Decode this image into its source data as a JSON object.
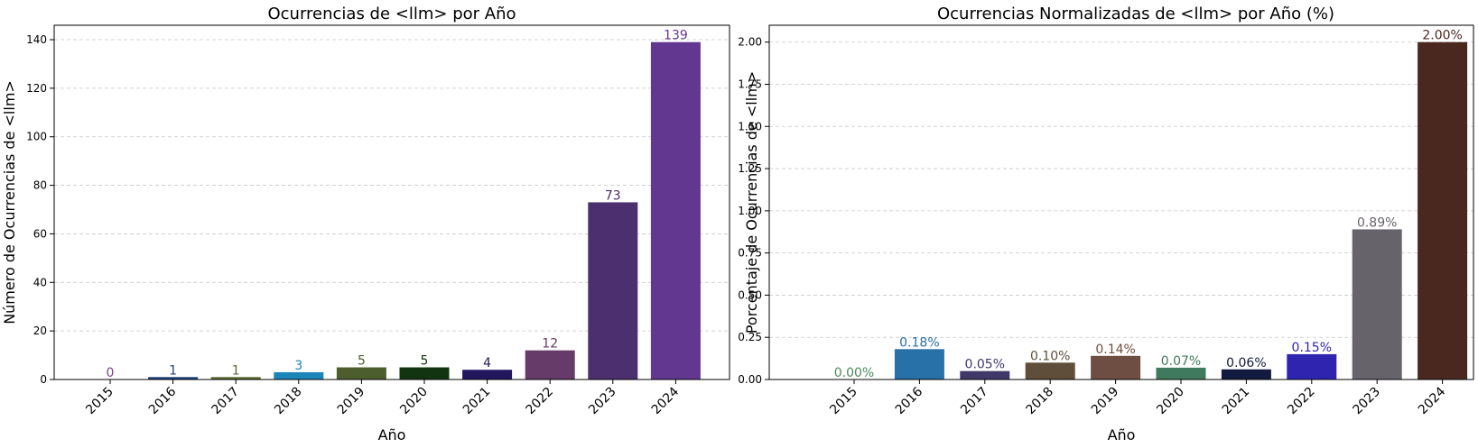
{
  "chart_data": [
    {
      "type": "bar",
      "title": "Ocurrencias de <llm> por Año",
      "xlabel": "Año",
      "ylabel": "Número de Ocurrencias de <llm>",
      "categories": [
        "2015",
        "2016",
        "2017",
        "2018",
        "2019",
        "2020",
        "2021",
        "2022",
        "2023",
        "2024"
      ],
      "values": [
        0,
        1,
        1,
        3,
        5,
        5,
        4,
        12,
        73,
        139
      ],
      "value_labels": [
        "0",
        "1",
        "1",
        "3",
        "5",
        "5",
        "4",
        "12",
        "73",
        "139"
      ],
      "colors": [
        "#5c2f69",
        "#1d3f7a",
        "#5a6a30",
        "#1b84b8",
        "#4d5e2e",
        "#123410",
        "#22165e",
        "#663a69",
        "#4b2f6e",
        "#62378f"
      ],
      "label_colors": [
        "#7a3f8c",
        "#1d3f7a",
        "#5a6a30",
        "#1b84b8",
        "#4d5e2e",
        "#123410",
        "#22165e",
        "#663a69",
        "#4b2f6e",
        "#62378f"
      ],
      "yticks": [
        0,
        20,
        40,
        60,
        80,
        100,
        120,
        140
      ],
      "ytick_labels": [
        "0",
        "20",
        "40",
        "60",
        "80",
        "100",
        "120",
        "140"
      ],
      "ylim": [
        0,
        145.95
      ],
      "grid": "y-dashed"
    },
    {
      "type": "bar",
      "title": "Ocurrencias Normalizadas de <llm> por Año (%)",
      "xlabel": "Año",
      "ylabel": "Porcentaje de Ocurrencias de <llm>",
      "categories": [
        "2015",
        "2016",
        "2017",
        "2018",
        "2019",
        "2020",
        "2021",
        "2022",
        "2023",
        "2024"
      ],
      "values": [
        0.0,
        0.18,
        0.05,
        0.1,
        0.14,
        0.07,
        0.06,
        0.15,
        0.89,
        2.0
      ],
      "value_labels": [
        "0.00%",
        "0.18%",
        "0.05%",
        "0.10%",
        "0.14%",
        "0.07%",
        "0.06%",
        "0.15%",
        "0.89%",
        "2.00%"
      ],
      "colors": [
        "#4a8a5a",
        "#2870a8",
        "#3f3868",
        "#5e4e3a",
        "#6e4e42",
        "#3f7a5e",
        "#121a40",
        "#2e24b0",
        "#67636b",
        "#4a2820"
      ],
      "label_colors": [
        "#4a8a5a",
        "#2870a8",
        "#3f3868",
        "#5e4e3a",
        "#6e4e42",
        "#3f7a5e",
        "#121a40",
        "#2e24b0",
        "#67636b",
        "#4a2820"
      ],
      "yticks": [
        0,
        0.25,
        0.5,
        0.75,
        1.0,
        1.25,
        1.5,
        1.75,
        2.0
      ],
      "ytick_labels": [
        "0.00",
        "0.25",
        "0.50",
        "0.75",
        "1.00",
        "1.25",
        "1.50",
        "1.75",
        "2.00"
      ],
      "ylim": [
        0,
        2.1
      ],
      "grid": "y-dashed"
    }
  ]
}
